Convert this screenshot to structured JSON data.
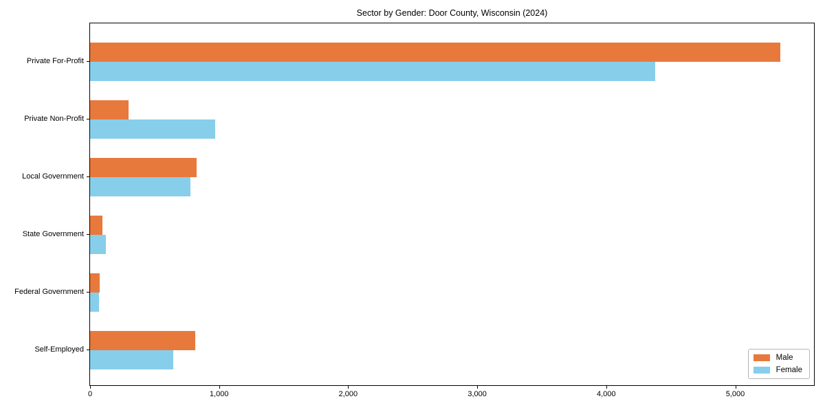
{
  "chart_data": {
    "type": "bar",
    "orientation": "horizontal",
    "title": "Sector by Gender: Door County, Wisconsin (2024)",
    "categories": [
      "Private For-Profit",
      "Private Non-Profit",
      "Local Government",
      "State Government",
      "Federal Government",
      "Self-Employed"
    ],
    "series": [
      {
        "name": "Male",
        "color": "#E8793D",
        "values": [
          5350,
          300,
          825,
          95,
          75,
          815
        ]
      },
      {
        "name": "Female",
        "color": "#87CEEB",
        "values": [
          4380,
          970,
          775,
          120,
          70,
          645
        ]
      }
    ],
    "xlabel": "",
    "ylabel": "",
    "xlim": [
      0,
      5610
    ],
    "xticks": [
      {
        "value": 0,
        "label": "0"
      },
      {
        "value": 1000,
        "label": "1,000"
      },
      {
        "value": 2000,
        "label": "2,000"
      },
      {
        "value": 3000,
        "label": "3,000"
      },
      {
        "value": 4000,
        "label": "4,000"
      },
      {
        "value": 5000,
        "label": "5,000"
      }
    ],
    "grid": false,
    "legend_position": "lower right",
    "background_color": "#ffffff",
    "spine_color": "#000000"
  }
}
